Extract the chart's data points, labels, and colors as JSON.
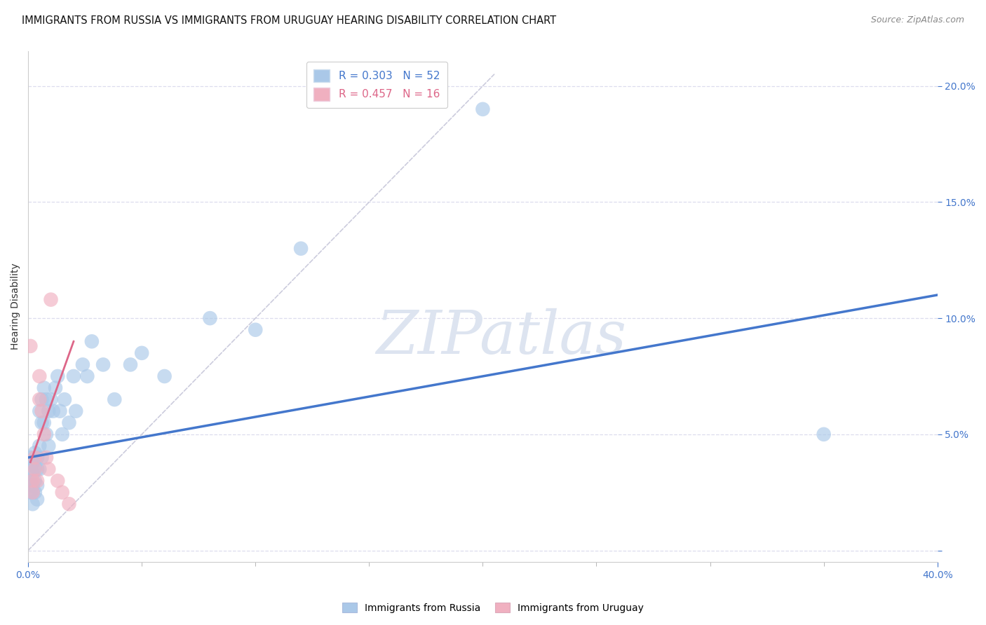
{
  "title": "IMMIGRANTS FROM RUSSIA VS IMMIGRANTS FROM URUGUAY HEARING DISABILITY CORRELATION CHART",
  "source": "Source: ZipAtlas.com",
  "ylabel": "Hearing Disability",
  "xlim": [
    0.0,
    0.4
  ],
  "ylim": [
    -0.005,
    0.215
  ],
  "russia_r": 0.303,
  "russia_n": 52,
  "uruguay_r": 0.457,
  "uruguay_n": 16,
  "russia_color": "#aac8e8",
  "uruguay_color": "#f0b0c0",
  "russia_line_color": "#4477cc",
  "uruguay_line_color": "#dd6688",
  "diagonal_color": "#ccccdd",
  "russia_x": [
    0.001,
    0.001,
    0.001,
    0.001,
    0.002,
    0.002,
    0.002,
    0.002,
    0.002,
    0.003,
    0.003,
    0.003,
    0.003,
    0.004,
    0.004,
    0.004,
    0.004,
    0.005,
    0.005,
    0.005,
    0.006,
    0.006,
    0.006,
    0.007,
    0.007,
    0.008,
    0.008,
    0.009,
    0.009,
    0.01,
    0.011,
    0.012,
    0.013,
    0.014,
    0.015,
    0.016,
    0.018,
    0.02,
    0.021,
    0.024,
    0.026,
    0.028,
    0.033,
    0.038,
    0.045,
    0.05,
    0.06,
    0.08,
    0.1,
    0.12,
    0.2,
    0.35
  ],
  "russia_y": [
    0.04,
    0.035,
    0.03,
    0.025,
    0.038,
    0.033,
    0.028,
    0.025,
    0.02,
    0.042,
    0.036,
    0.03,
    0.025,
    0.04,
    0.035,
    0.028,
    0.022,
    0.06,
    0.045,
    0.035,
    0.065,
    0.055,
    0.04,
    0.07,
    0.055,
    0.065,
    0.05,
    0.06,
    0.045,
    0.065,
    0.06,
    0.07,
    0.075,
    0.06,
    0.05,
    0.065,
    0.055,
    0.075,
    0.06,
    0.08,
    0.075,
    0.09,
    0.08,
    0.065,
    0.08,
    0.085,
    0.075,
    0.1,
    0.095,
    0.13,
    0.19,
    0.05
  ],
  "uruguay_x": [
    0.001,
    0.002,
    0.002,
    0.003,
    0.003,
    0.004,
    0.005,
    0.005,
    0.006,
    0.007,
    0.008,
    0.009,
    0.01,
    0.013,
    0.015,
    0.018
  ],
  "uruguay_y": [
    0.088,
    0.03,
    0.025,
    0.04,
    0.035,
    0.03,
    0.075,
    0.065,
    0.06,
    0.05,
    0.04,
    0.035,
    0.108,
    0.03,
    0.025,
    0.02
  ],
  "russia_line_x0": 0.0,
  "russia_line_x1": 0.4,
  "russia_line_y0": 0.04,
  "russia_line_y1": 0.11,
  "uruguay_line_x0": 0.001,
  "uruguay_line_x1": 0.02,
  "uruguay_line_y0": 0.038,
  "uruguay_line_y1": 0.09,
  "background_color": "#ffffff",
  "grid_color": "#ddddee",
  "title_fontsize": 10.5,
  "source_fontsize": 9,
  "legend_fontsize": 11,
  "axis_label_fontsize": 10,
  "tick_fontsize": 10,
  "watermark_text": "ZIPatlas",
  "watermark_color": "#dde4f0"
}
